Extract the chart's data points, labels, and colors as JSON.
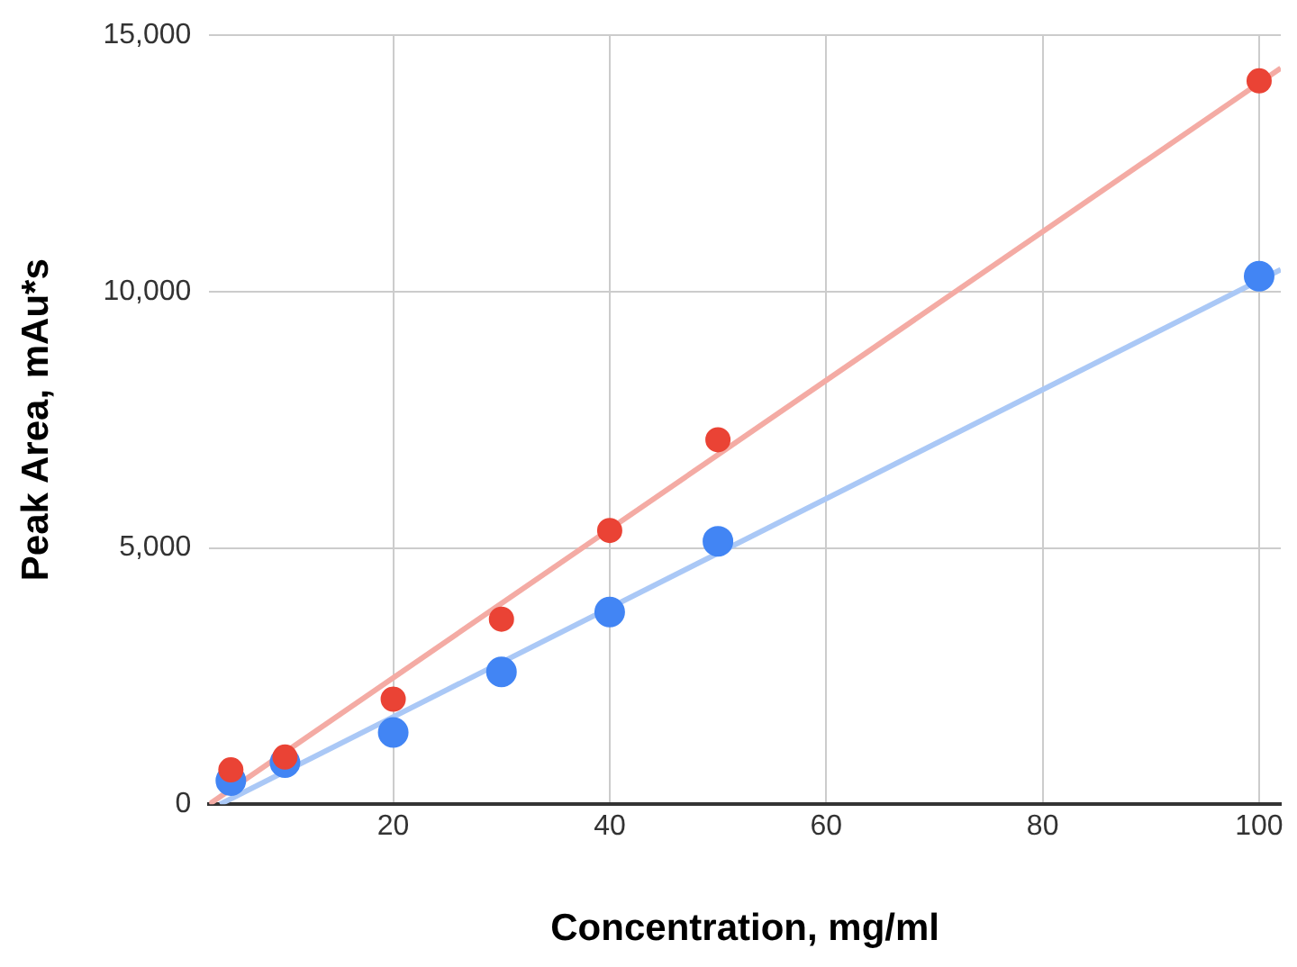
{
  "chart_data": {
    "type": "scatter",
    "xlabel": "Concentration, mg/ml",
    "ylabel": "Peak Area, mAu*s",
    "xlim": [
      3,
      102
    ],
    "xticks": [
      20,
      40,
      60,
      80,
      100
    ],
    "ylim": [
      0,
      15000
    ],
    "yticks": [
      {
        "value": 0,
        "label": "0"
      },
      {
        "value": 5000,
        "label": "5,000"
      },
      {
        "value": 10000,
        "label": "10,000"
      },
      {
        "value": 15000,
        "label": "15,000"
      }
    ],
    "grid": true,
    "legend": false,
    "marker": "circle",
    "series": [
      {
        "type": "line",
        "marker": "none",
        "color": "#f4aba4",
        "x": [
          3,
          102
        ],
        "values": [
          0,
          14360
        ]
      },
      {
        "type": "line",
        "marker": "none",
        "color": "#aac8f6",
        "x": [
          4,
          102
        ],
        "values": [
          0,
          10430
        ]
      },
      {
        "color": "#ea4335",
        "x": [
          5,
          10,
          20,
          30,
          40,
          50,
          100
        ],
        "values": [
          670,
          920,
          2050,
          3610,
          5340,
          7110,
          14110
        ]
      },
      {
        "color": "#4285f4",
        "x": [
          5,
          10,
          20,
          30,
          40,
          50,
          100
        ],
        "values": [
          460,
          810,
          1400,
          2580,
          3750,
          5130,
          10300
        ]
      }
    ]
  }
}
